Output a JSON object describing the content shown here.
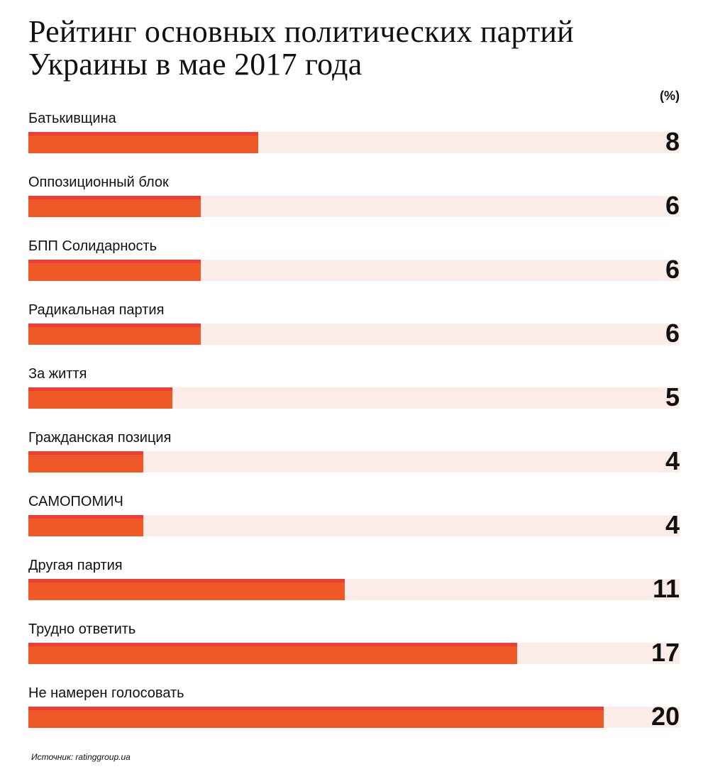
{
  "header": {
    "title": "Рейтинг основных политических партий Украины в мае 2017 года",
    "unit": "(%)"
  },
  "source": "Источник: ratinggroup.ua",
  "colors": {
    "bar": "#f05a28",
    "bar_top": "#ec3e37",
    "track": "#fcece8"
  },
  "chart_data": {
    "type": "bar",
    "orientation": "horizontal",
    "title": "Рейтинг основных политических партий Украины в мае 2017 года",
    "unit": "(%)",
    "categories": [
      "Батькивщина",
      "Оппозиционный блок",
      "БПП Солидарность",
      "Радикальная партия",
      "За життя",
      "Гражданская позиция",
      "САМОПОМИЧ",
      "Другая партия",
      "Трудно ответить",
      "Не намерен голосовать"
    ],
    "values": [
      8,
      6,
      6,
      6,
      5,
      4,
      4,
      11,
      17,
      20
    ],
    "xlim": [
      0,
      22.65
    ]
  }
}
